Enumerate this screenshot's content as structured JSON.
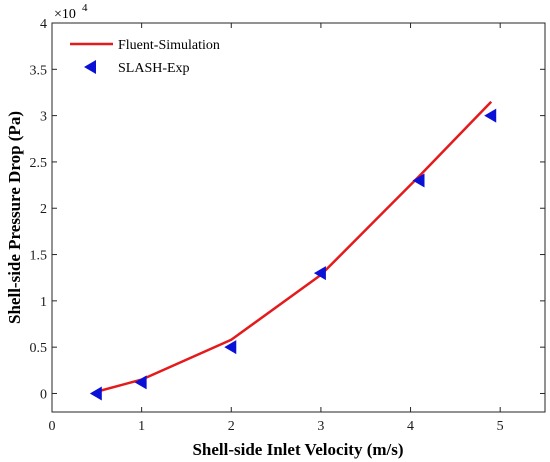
{
  "chart_data": {
    "type": "line",
    "xlabel": "Shell-side Inlet Velocity (m/s)",
    "ylabel": "Shell-side Pressure Drop (Pa)",
    "xlim": [
      0,
      5.5
    ],
    "ylim": [
      -0.2,
      4
    ],
    "x_ticks": [
      0,
      1,
      2,
      3,
      4,
      5
    ],
    "y_ticks": [
      0,
      0.5,
      1,
      1.5,
      2,
      2.5,
      3,
      3.5,
      4
    ],
    "x_tick_labels": [
      "0",
      "1",
      "2",
      "3",
      "4",
      "5"
    ],
    "y_tick_labels": [
      "0",
      "0.5",
      "1",
      "1.5",
      "2",
      "2.5",
      "3",
      "3.5",
      "4"
    ],
    "y_multiplier": {
      "base": "×10",
      "exponent": "4"
    },
    "legend_position": "top-left",
    "grid": false,
    "series": [
      {
        "name": "Fluent-Simulation",
        "kind": "line",
        "color": "#e41a1c",
        "x": [
          0.5,
          1.0,
          2.0,
          3.0,
          4.1,
          4.9
        ],
        "y": [
          0.02,
          0.15,
          0.58,
          1.28,
          2.35,
          3.15
        ]
      },
      {
        "name": "SLASH-Exp",
        "kind": "scatter",
        "marker": "left-triangle",
        "color": "#0b10d6",
        "x": [
          0.5,
          1.0,
          2.0,
          3.0,
          4.1,
          4.9
        ],
        "y": [
          0.0,
          0.12,
          0.5,
          1.3,
          2.3,
          3.0
        ]
      }
    ]
  }
}
